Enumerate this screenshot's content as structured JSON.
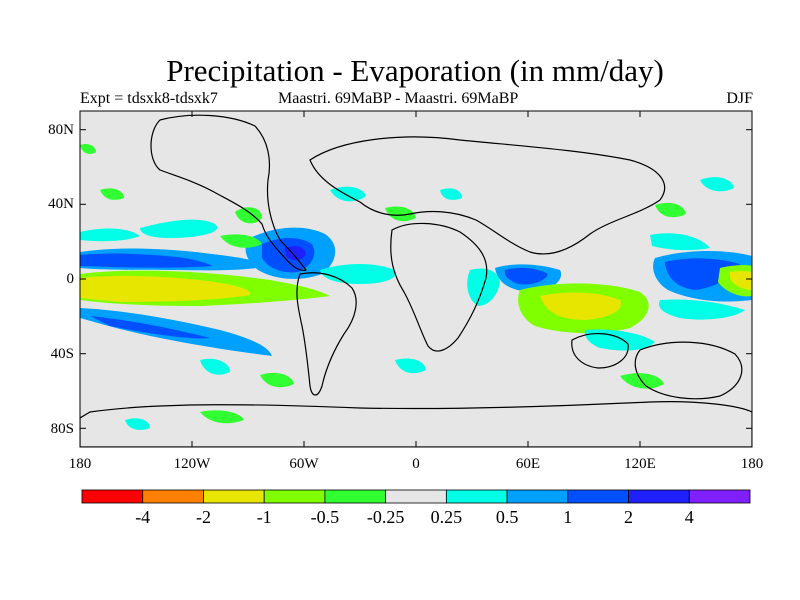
{
  "title": "Precipitation - Evaporation (in mm/day)",
  "subtitle": {
    "left": "Expt = tdsxk8-tdsxk7",
    "center": "Maastri.  69MaBP - Maastri.  69MaBP",
    "right": "DJF"
  },
  "map": {
    "projection": "cylindrical equidistant",
    "background_color": "#e6e6e6",
    "lat_ticks": [
      "80N",
      "40N",
      "0",
      "40S",
      "80S"
    ],
    "lon_ticks": [
      "180",
      "120W",
      "60W",
      "0",
      "60E",
      "120E",
      "180"
    ]
  },
  "colorbar": {
    "colors": [
      "#ff0000",
      "#ff8000",
      "#e6e600",
      "#80ff00",
      "#32ff32",
      "#e6e6e6",
      "#00ffe6",
      "#00a0ff",
      "#0050ff",
      "#2020ff",
      "#8020ff"
    ],
    "labels": [
      "-4",
      "-2",
      "-1",
      "-0.5",
      "-0.25",
      "0.25",
      "0.5",
      "1",
      "2",
      "4"
    ]
  }
}
